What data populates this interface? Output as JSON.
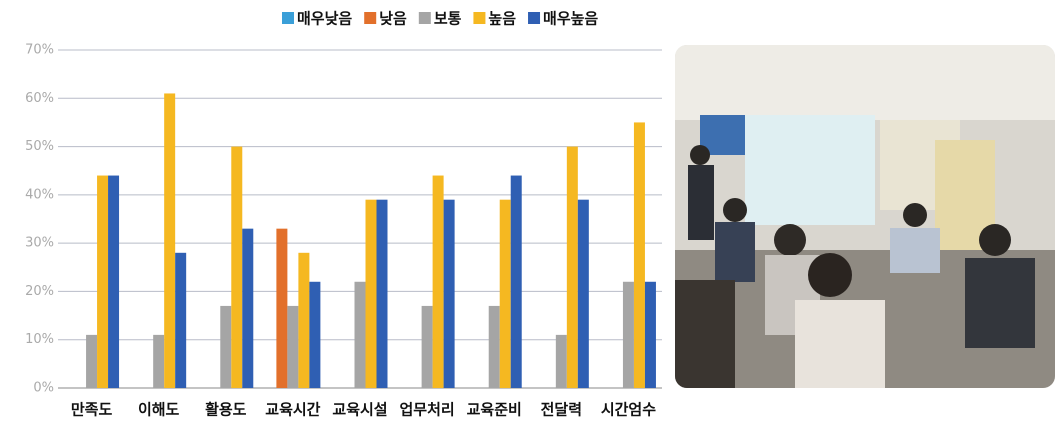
{
  "chart_data": {
    "type": "bar",
    "categories": [
      "만족도",
      "이해도",
      "활용도",
      "교육시간",
      "교육시설",
      "업무처리",
      "교육준비",
      "전달력",
      "시간엄수"
    ],
    "series": [
      {
        "name": "매우낮음",
        "color": "#3a9fd8",
        "values": [
          0,
          0,
          0,
          0,
          0,
          0,
          0,
          0,
          0
        ]
      },
      {
        "name": "낮음",
        "color": "#e2702b",
        "values": [
          0,
          0,
          0,
          33,
          0,
          0,
          0,
          0,
          0
        ]
      },
      {
        "name": "보통",
        "color": "#a5a5a5",
        "values": [
          11,
          11,
          17,
          17,
          22,
          17,
          17,
          11,
          22
        ]
      },
      {
        "name": "높음",
        "color": "#f5b821",
        "values": [
          44,
          61,
          50,
          28,
          39,
          44,
          39,
          50,
          55
        ]
      },
      {
        "name": "매우높음",
        "color": "#2f5fb3",
        "values": [
          44,
          28,
          33,
          22,
          39,
          39,
          44,
          39,
          22
        ]
      }
    ],
    "ylim": [
      0,
      70
    ],
    "yticks": [
      {
        "value": 0,
        "label": "0%"
      },
      {
        "value": 10,
        "label": "10%"
      },
      {
        "value": 20,
        "label": "20%"
      },
      {
        "value": 30,
        "label": "30%"
      },
      {
        "value": 40,
        "label": "40%"
      },
      {
        "value": 50,
        "label": "50%"
      },
      {
        "value": 60,
        "label": "60%"
      },
      {
        "value": 70,
        "label": "70%"
      }
    ],
    "grid": true,
    "legend": "top"
  }
}
